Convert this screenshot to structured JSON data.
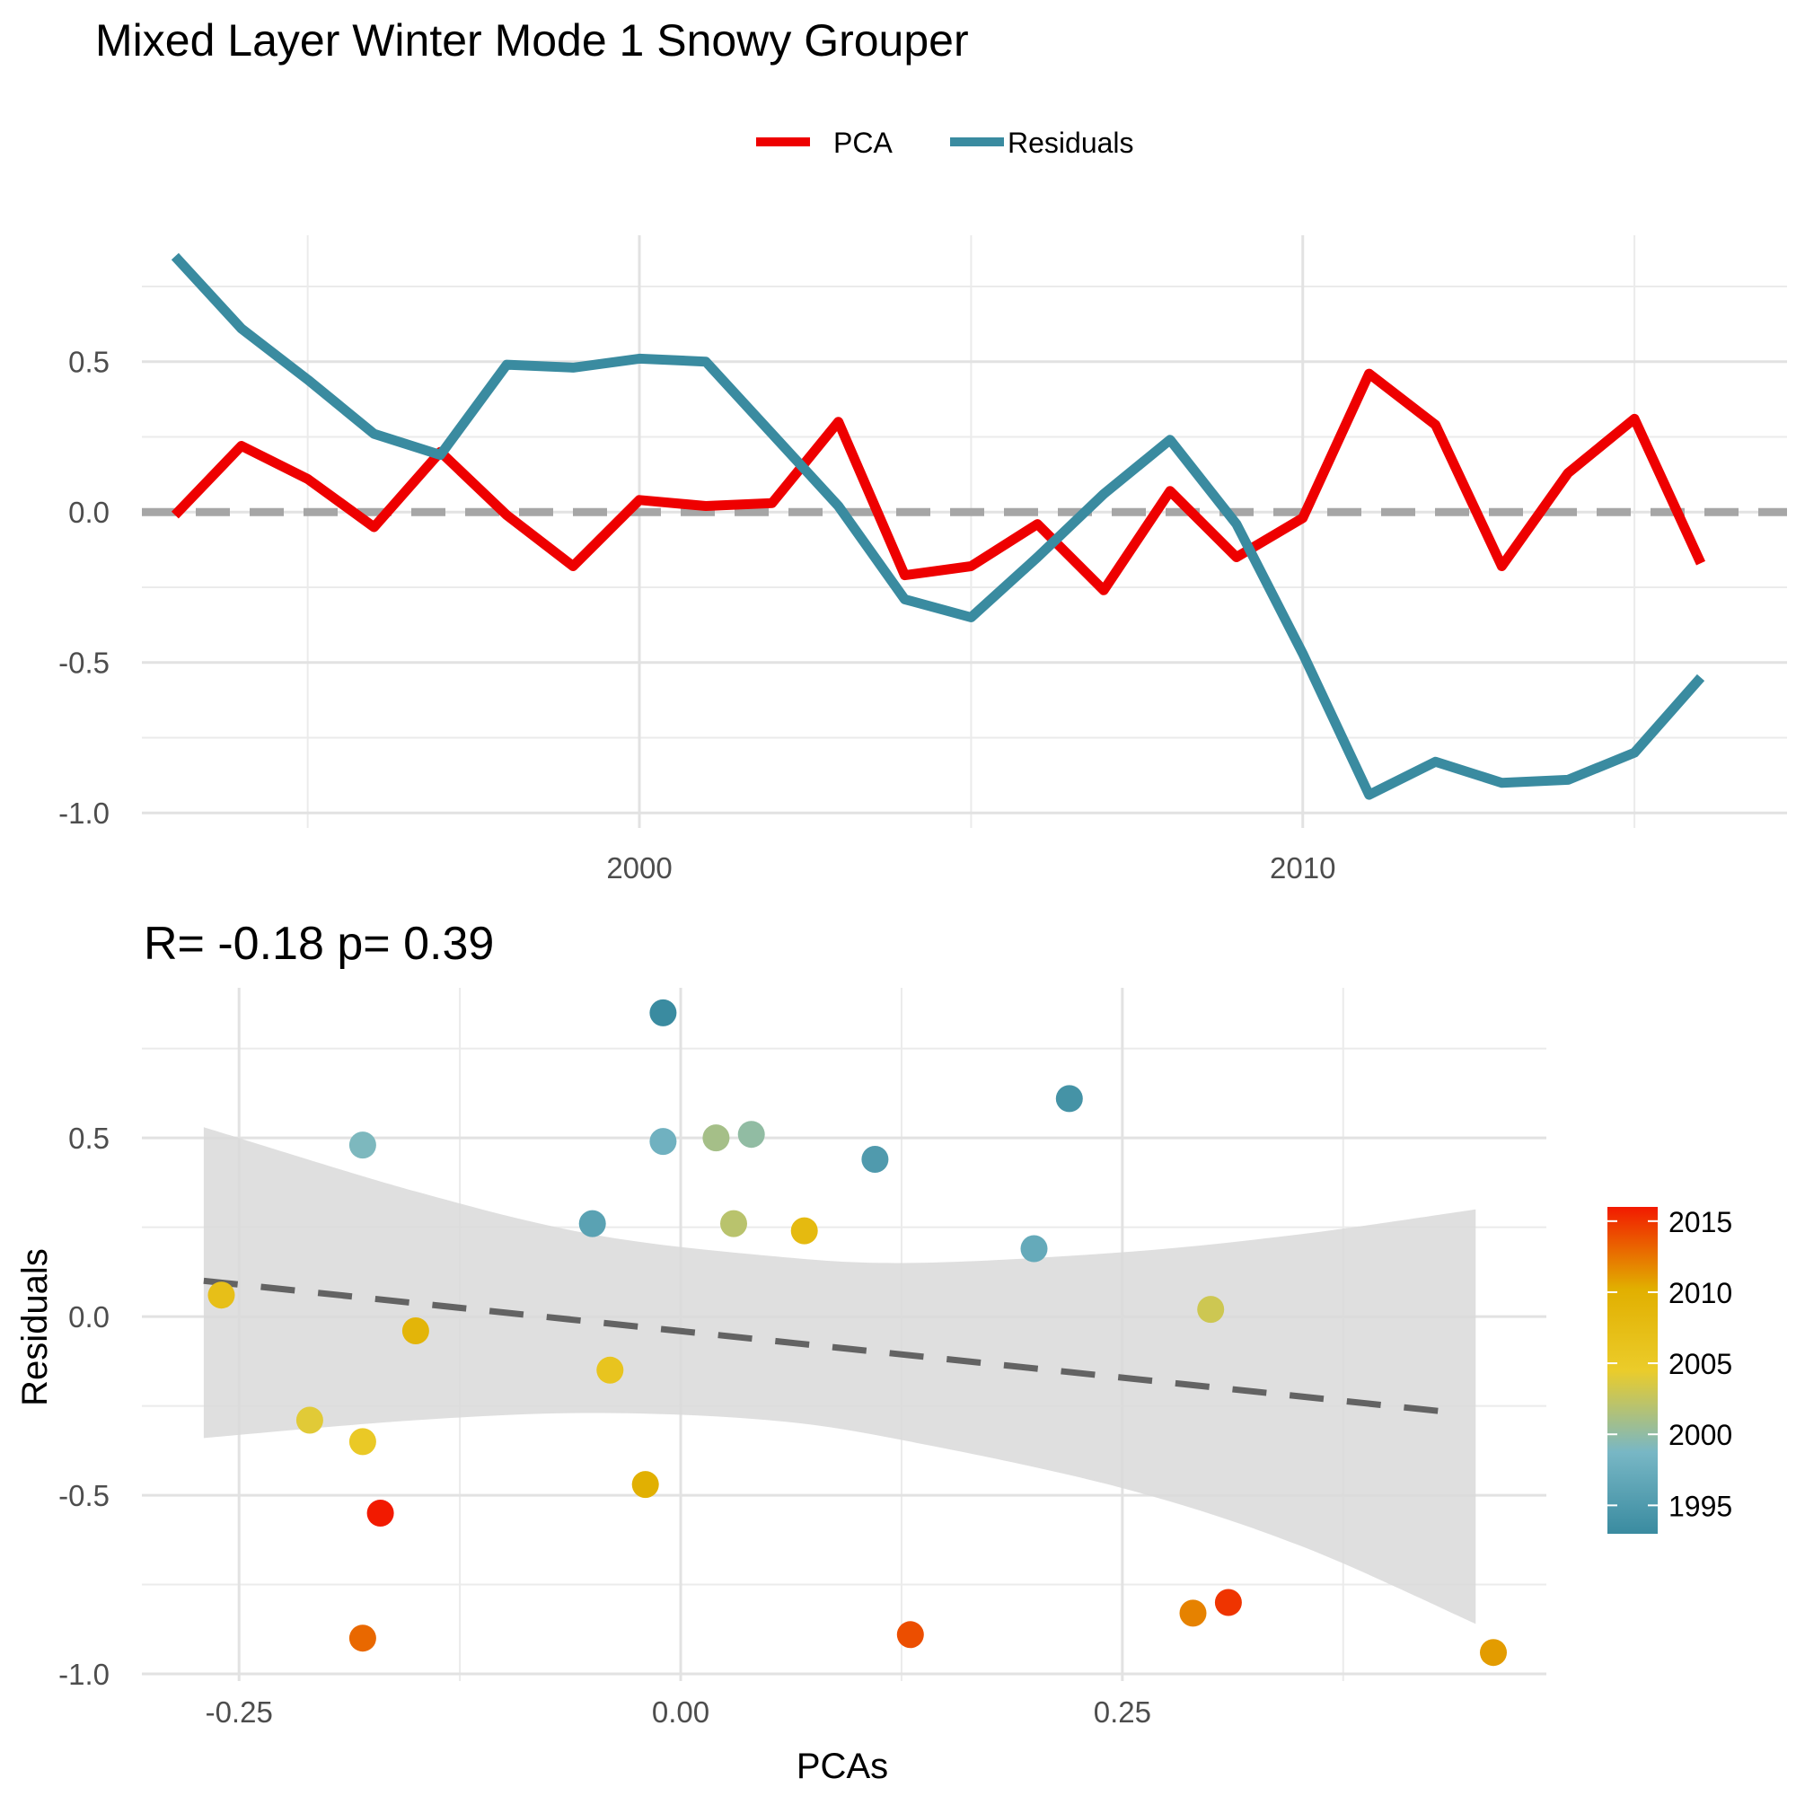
{
  "title": "Mixed Layer Winter Mode 1 Snowy Grouper",
  "legend": {
    "items": [
      {
        "label": "PCA",
        "color": "#EE0000"
      },
      {
        "label": "Residuals",
        "color": "#3A8BA0"
      }
    ]
  },
  "chart_data": [
    {
      "type": "line",
      "x": [
        1993,
        1994,
        1995,
        1996,
        1997,
        1998,
        1999,
        2000,
        2001,
        2002,
        2003,
        2004,
        2005,
        2006,
        2007,
        2008,
        2009,
        2010,
        2011,
        2012,
        2013,
        2014,
        2015,
        2016
      ],
      "series": [
        {
          "name": "PCA",
          "color": "#EE0000",
          "values": [
            -0.01,
            0.22,
            0.11,
            -0.05,
            0.2,
            -0.01,
            -0.18,
            0.04,
            0.02,
            0.03,
            0.3,
            -0.21,
            -0.18,
            -0.04,
            -0.26,
            0.07,
            -0.15,
            -0.02,
            0.46,
            0.29,
            -0.18,
            0.13,
            0.31,
            -0.17
          ]
        },
        {
          "name": "Residuals",
          "color": "#3A8BA0",
          "values": [
            0.85,
            0.61,
            0.44,
            0.26,
            0.19,
            0.49,
            0.48,
            0.51,
            0.5,
            0.26,
            0.02,
            -0.29,
            -0.35,
            -0.15,
            0.06,
            0.24,
            -0.04,
            -0.47,
            -0.94,
            -0.83,
            -0.9,
            -0.89,
            -0.8,
            -0.55
          ]
        }
      ],
      "xlim": [
        1992.5,
        2017.3
      ],
      "ylim": [
        -1.05,
        0.92
      ],
      "xticks": [
        2000,
        2010
      ],
      "xtick_labels": [
        "2000",
        "2010"
      ],
      "yticks": [
        -1.0,
        -0.5,
        0.0,
        0.5
      ],
      "ytick_labels": [
        "-1.0",
        "-0.5",
        "0.0",
        "0.5"
      ],
      "reference_line": 0,
      "grid": true,
      "legend_position": "top"
    },
    {
      "type": "scatter",
      "subtitle": "R= -0.18  p= 0.39",
      "xlabel": "PCAs",
      "ylabel": "Residuals",
      "x": [
        -0.01,
        0.22,
        0.11,
        -0.05,
        0.2,
        -0.01,
        -0.18,
        0.04,
        0.02,
        0.03,
        0.3,
        -0.21,
        -0.18,
        -0.04,
        -0.26,
        0.07,
        -0.15,
        -0.02,
        0.46,
        0.29,
        -0.18,
        0.13,
        0.31,
        -0.17
      ],
      "y": [
        0.85,
        0.61,
        0.44,
        0.26,
        0.19,
        0.49,
        0.48,
        0.51,
        0.5,
        0.26,
        0.02,
        -0.29,
        -0.35,
        -0.15,
        0.06,
        0.24,
        -0.04,
        -0.47,
        -0.94,
        -0.83,
        -0.9,
        -0.89,
        -0.8,
        -0.55
      ],
      "color_values": [
        1993,
        1994,
        1995,
        1996,
        1997,
        1998,
        1999,
        2000,
        2001,
        2002,
        2003,
        2004,
        2005,
        2006,
        2007,
        2008,
        2009,
        2010,
        2011,
        2012,
        2013,
        2014,
        2015,
        2016
      ],
      "xlim": [
        -0.305,
        0.49
      ],
      "ylim": [
        -1.02,
        0.92
      ],
      "xticks": [
        -0.25,
        0.0,
        0.25
      ],
      "xtick_labels": [
        "-0.25",
        "0.00",
        "0.25"
      ],
      "yticks": [
        -1.0,
        -0.5,
        0.0,
        0.5
      ],
      "ytick_labels": [
        "-1.0",
        "-0.5",
        "0.0",
        "0.5"
      ],
      "trend": {
        "x": [
          -0.27,
          0.44
        ],
        "y": [
          0.1,
          -0.27
        ]
      },
      "confidence_band": {
        "x": [
          -0.27,
          -0.15,
          -0.05,
          0.05,
          0.13,
          0.25,
          0.35,
          0.45
        ],
        "upper": [
          0.53,
          0.35,
          0.23,
          0.17,
          0.15,
          0.18,
          0.23,
          0.3
        ],
        "lower": [
          -0.34,
          -0.29,
          -0.27,
          -0.29,
          -0.35,
          -0.48,
          -0.64,
          -0.86
        ]
      },
      "grid": true,
      "colorbar": {
        "labels": [
          "2015",
          "2010",
          "2005",
          "2000",
          "1995"
        ],
        "values": [
          2015,
          2010,
          2005,
          2000,
          1995
        ],
        "range": [
          1993,
          2016
        ],
        "stops": [
          "#3A8BA0",
          "#78B7C5",
          "#EBCC2A",
          "#E1AF00",
          "#F21A00"
        ],
        "position": "right"
      }
    }
  ]
}
